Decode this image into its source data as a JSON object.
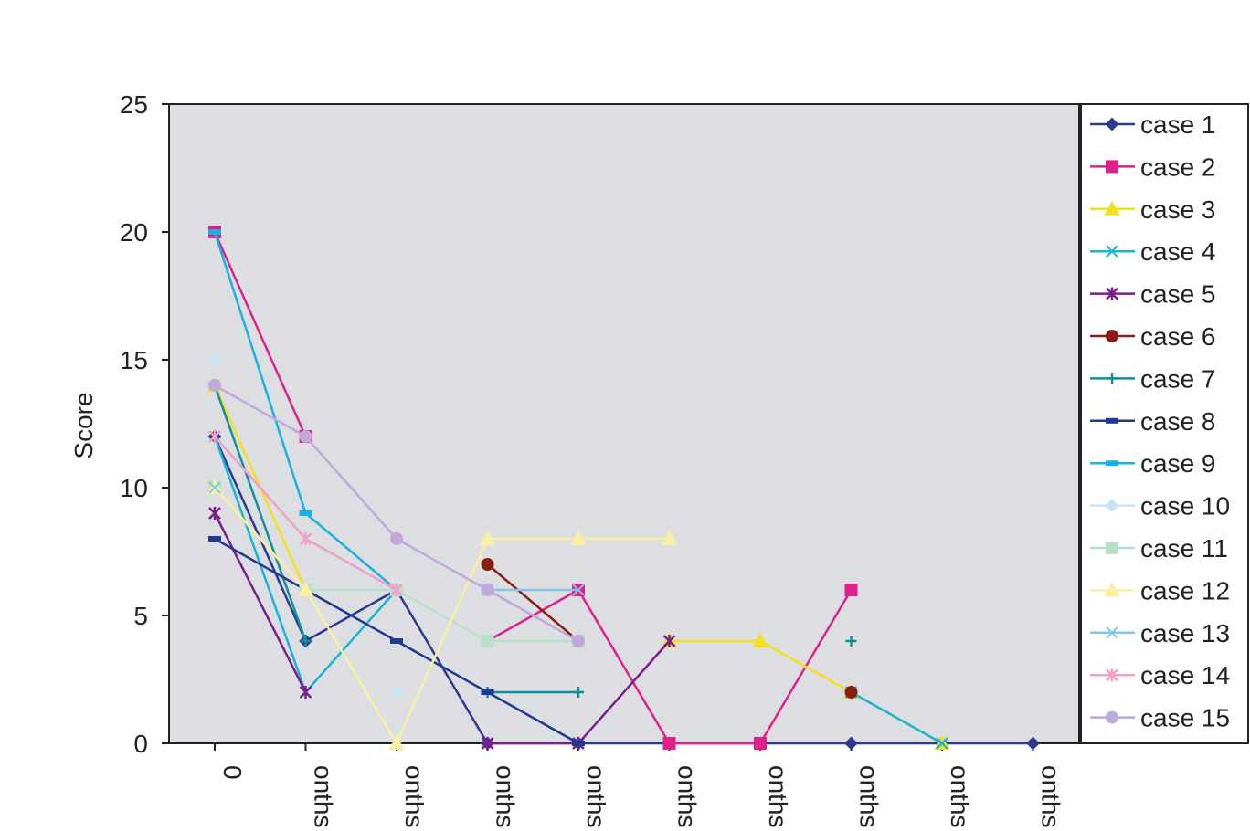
{
  "chart_data": {
    "type": "line",
    "title": "",
    "xlabel": "",
    "ylabel": "Score",
    "ylim": [
      0,
      25
    ],
    "yticks": [
      0,
      5,
      10,
      15,
      20,
      25
    ],
    "grid": false,
    "legend_position": "right",
    "plot_background": "#dcdee2",
    "categories": [
      "0",
      "onths",
      "onths",
      "onths",
      "onths",
      "onths",
      "onths",
      "onths",
      "onths",
      "onths"
    ],
    "series": [
      {
        "name": "case 1",
        "color": "#2b3a8f",
        "marker": "diamond",
        "values": [
          12,
          4,
          6,
          0,
          0,
          0,
          0,
          0,
          0,
          0
        ]
      },
      {
        "name": "case 2",
        "color": "#e0208a",
        "marker": "square",
        "values": [
          20,
          12,
          null,
          4,
          6,
          0,
          0,
          6,
          null,
          null
        ]
      },
      {
        "name": "case 3",
        "color": "#f2e01e",
        "marker": "triangle",
        "values": [
          14,
          6,
          null,
          null,
          null,
          4,
          4,
          2,
          0,
          null
        ]
      },
      {
        "name": "case 4",
        "color": "#18b4d8",
        "marker": "x",
        "values": [
          12,
          2,
          6,
          null,
          null,
          null,
          null,
          2,
          0,
          null
        ]
      },
      {
        "name": "case 5",
        "color": "#7a1f8a",
        "marker": "star",
        "values": [
          9,
          2,
          null,
          0,
          0,
          4,
          null,
          null,
          null,
          null
        ]
      },
      {
        "name": "case 6",
        "color": "#8a1c10",
        "marker": "circle",
        "values": [
          null,
          null,
          null,
          7,
          4,
          null,
          null,
          2,
          null,
          null
        ]
      },
      {
        "name": "case 7",
        "color": "#10909a",
        "marker": "plus",
        "values": [
          14,
          4,
          null,
          2,
          2,
          null,
          null,
          4,
          null,
          null
        ]
      },
      {
        "name": "case 8",
        "color": "#1f3a90",
        "marker": "dash",
        "values": [
          8,
          6,
          4,
          2,
          0,
          null,
          null,
          null,
          null,
          null
        ]
      },
      {
        "name": "case 9",
        "color": "#1ab0e0",
        "marker": "dash",
        "values": [
          20,
          9,
          6,
          null,
          null,
          null,
          null,
          null,
          null,
          null
        ]
      },
      {
        "name": "case 10",
        "color": "#c6e6f8",
        "marker": "diamond",
        "values": [
          15,
          null,
          2,
          null,
          null,
          null,
          null,
          null,
          null,
          null
        ]
      },
      {
        "name": "case 11",
        "color": "#b8e0c8",
        "marker": "square",
        "values": [
          10,
          6,
          6,
          4,
          4,
          null,
          null,
          null,
          null,
          null
        ]
      },
      {
        "name": "case 12",
        "color": "#f8f0a0",
        "marker": "triangle",
        "values": [
          10,
          6,
          0,
          8,
          8,
          8,
          null,
          null,
          null,
          null
        ]
      },
      {
        "name": "case 13",
        "color": "#80c8e8",
        "marker": "x",
        "values": [
          10,
          null,
          null,
          6,
          6,
          null,
          null,
          null,
          null,
          null
        ]
      },
      {
        "name": "case 14",
        "color": "#f0a0c8",
        "marker": "star",
        "values": [
          12,
          8,
          6,
          null,
          null,
          null,
          null,
          null,
          null,
          null
        ]
      },
      {
        "name": "case 15",
        "color": "#c0a8d8",
        "marker": "circle",
        "values": [
          14,
          12,
          8,
          6,
          4,
          null,
          null,
          null,
          null,
          null
        ]
      }
    ]
  }
}
